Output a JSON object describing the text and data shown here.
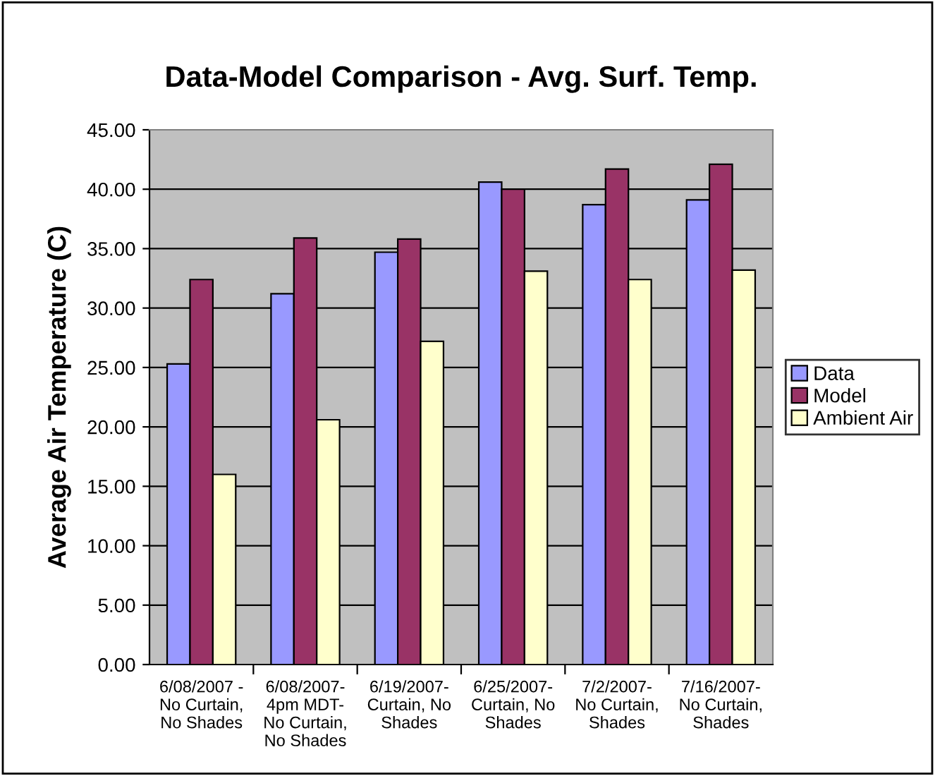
{
  "chart_data": {
    "type": "bar",
    "title": "Data-Model Comparison - Avg. Surf. Temp.",
    "ylabel": "Average Air Temperature (C)",
    "categories": [
      "6/08/2007 -\nNo Curtain,\nNo Shades",
      "6/08/2007-\n4pm MDT-\nNo Curtain,\nNo Shades",
      "6/19/2007-\nCurtain, No\nShades",
      "6/25/2007-\nCurtain, No\nShades",
      "7/2/2007-\nNo Curtain,\nShades",
      "7/16/2007-\nNo Curtain,\nShades"
    ],
    "series": [
      {
        "name": "Data",
        "color": "#9999ff",
        "values": [
          25.3,
          31.2,
          34.7,
          40.6,
          38.7,
          39.1
        ]
      },
      {
        "name": "Model",
        "color": "#993366",
        "values": [
          32.4,
          35.9,
          35.8,
          40.0,
          41.7,
          42.1
        ]
      },
      {
        "name": "Ambient Air",
        "color": "#ffffcc",
        "values": [
          16.0,
          20.6,
          27.2,
          33.1,
          32.4,
          33.2
        ]
      }
    ],
    "ylim": [
      0,
      45
    ],
    "yticks": [
      {
        "value": 0,
        "label": "0.00"
      },
      {
        "value": 5,
        "label": "5.00"
      },
      {
        "value": 10,
        "label": "10.00"
      },
      {
        "value": 15,
        "label": "15.00"
      },
      {
        "value": 20,
        "label": "20.00"
      },
      {
        "value": 25,
        "label": "25.00"
      },
      {
        "value": 30,
        "label": "30.00"
      },
      {
        "value": 35,
        "label": "35.00"
      },
      {
        "value": 40,
        "label": "40.00"
      },
      {
        "value": 45,
        "label": "45.00"
      }
    ],
    "grid": "y",
    "legend": "right"
  }
}
